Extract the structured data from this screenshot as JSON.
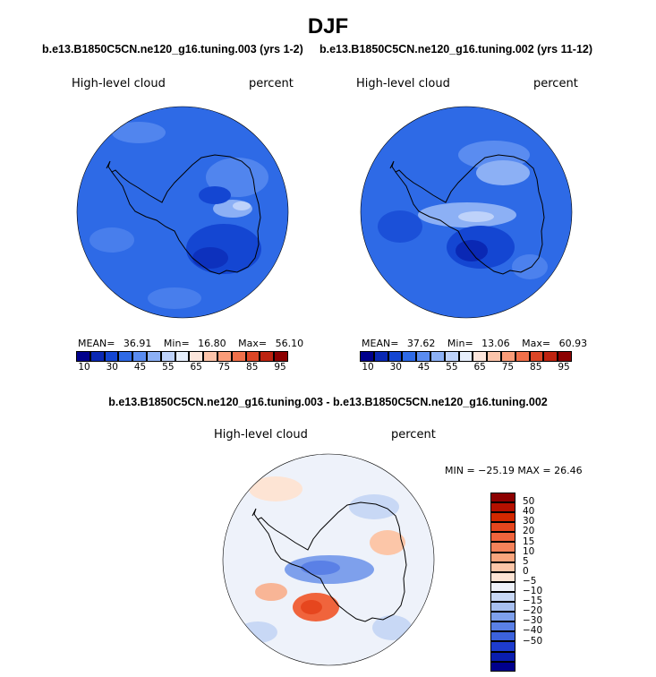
{
  "title": "DJF",
  "run_a": "b.e13.B1850C5CN.ne120_g16.tuning.003 (yrs 1-2)",
  "run_b": "b.e13.B1850C5CN.ne120_g16.tuning.002 (yrs 11-12)",
  "diff_title": "b.e13.B1850C5CN.ne120_g16.tuning.003 - b.e13.B1850C5CN.ne120_g16.tuning.002",
  "panels": [
    {
      "variable": "High-level cloud",
      "units": "percent",
      "stats": {
        "mean_label": "MEAN=",
        "mean": "36.91",
        "min_label": "Min=",
        "min": "16.80",
        "max_label": "Max=",
        "max": "56.10"
      }
    },
    {
      "variable": "High-level cloud",
      "units": "percent",
      "stats": {
        "mean_label": "MEAN=",
        "mean": "37.62",
        "min_label": "Min=",
        "min": "13.06",
        "max_label": "Max=",
        "max": "60.93"
      }
    },
    {
      "variable": "High-level cloud",
      "units": "percent",
      "stats_text": "MIN = −25.19  MAX =  26.46"
    }
  ],
  "abs_colorbar": {
    "colors": [
      "#00008c",
      "#0a28b4",
      "#1446d2",
      "#2e6ae6",
      "#5a8cf0",
      "#8cb0f5",
      "#bed2fa",
      "#e6eefc",
      "#fce6dc",
      "#fcc4aa",
      "#fa9c78",
      "#f0704a",
      "#dc4626",
      "#be2310",
      "#8c0000"
    ],
    "labels": [
      "10",
      "30",
      "45",
      "55",
      "65",
      "75",
      "85",
      "95"
    ]
  },
  "diff_colorbar": {
    "colors": [
      "#8c0000",
      "#b41000",
      "#d22800",
      "#e6461e",
      "#f0643c",
      "#f5825a",
      "#faa57d",
      "#fcc6a8",
      "#fde4d4",
      "#eef2fa",
      "#c8d8f5",
      "#a8c0f0",
      "#7ea0ec",
      "#5a80e6",
      "#3c62dc",
      "#1e3ccd",
      "#0a1eaf",
      "#00008c"
    ],
    "labels": [
      "50",
      "40",
      "30",
      "20",
      "15",
      "10",
      "5",
      "0",
      "−5",
      "−10",
      "−15",
      "−20",
      "−30",
      "−40",
      "−50"
    ]
  }
}
